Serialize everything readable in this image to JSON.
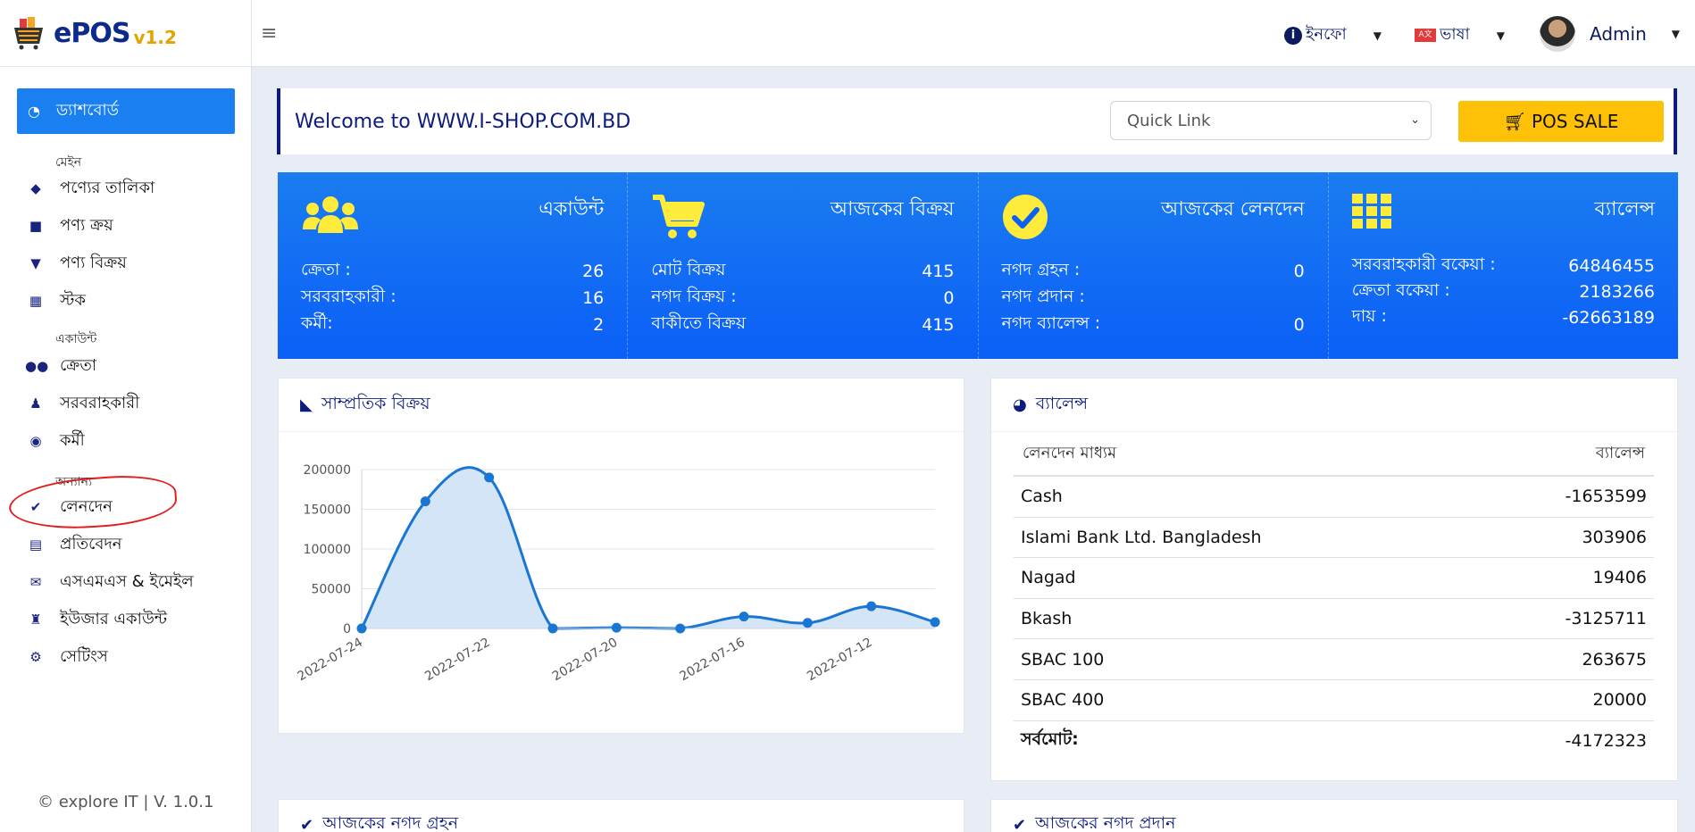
{
  "app": {
    "logo_text": "ePOS",
    "logo_version": "v1.2"
  },
  "sidebar": {
    "active": "ড্যাশবোর্ড",
    "sections": [
      {
        "label": "মেইন",
        "items": [
          "পণ্যের তালিকা",
          "পণ্য ক্রয়",
          "পণ্য বিক্রয়",
          "স্টক"
        ]
      },
      {
        "label": "একাউন্ট",
        "items": [
          "ক্রেতা",
          "সরবরাহকারী",
          "কর্মী"
        ]
      },
      {
        "label": "অন্যান্য",
        "items": [
          "লেনদেন",
          "প্রতিবেদন",
          "এসএমএস & ইমেইল",
          "ইউজার একাউন্ট",
          "সেটিংস"
        ]
      }
    ],
    "footer": "© explore IT | V. 1.0.1"
  },
  "topbar": {
    "info_label": "ইনফো",
    "lang_label": "ভাষা",
    "user_label": "Admin"
  },
  "welcome": {
    "text": "Welcome to WWW.I-SHOP.COM.BD",
    "quick_link_placeholder": "Quick Link",
    "pos_button": "POS SALE"
  },
  "stats": [
    {
      "title": "একাউন্ট",
      "icon": "users-icon",
      "rows": [
        [
          "ক্রেতা :",
          "26"
        ],
        [
          "সরবরাহকারী :",
          "16"
        ],
        [
          "কর্মী:",
          "2"
        ]
      ]
    },
    {
      "title": "আজকের বিক্রয়",
      "icon": "cart-icon",
      "rows": [
        [
          "মোট বিক্রয়",
          "415"
        ],
        [
          "নগদ বিক্রয় :",
          "0"
        ],
        [
          "বাকীতে বিক্রয়",
          "415"
        ]
      ]
    },
    {
      "title": "আজকের লেনদেন",
      "icon": "check-circle-icon",
      "rows": [
        [
          "নগদ গ্রহন :",
          "0"
        ],
        [
          "নগদ প্রদান :",
          ""
        ],
        [
          "নগদ ব্যালেন্স :",
          "0"
        ]
      ]
    },
    {
      "title": "ব্যালেন্স",
      "icon": "grid-icon",
      "rows": [
        [
          "সরবরাহকারী বকেয়া :",
          "64846455"
        ],
        [
          "ক্রেতা বকেয়া :",
          "2183266"
        ],
        [
          "দায় :",
          "-62663189"
        ]
      ]
    }
  ],
  "sales_card": {
    "title": "সাম্প্রতিক বিক্রয়"
  },
  "chart_data": {
    "type": "area",
    "x": [
      "2022-07-24",
      "2022-07-23",
      "2022-07-22",
      "2022-07-21",
      "2022-07-20",
      "2022-07-19",
      "2022-07-16",
      "2022-07-14",
      "2022-07-12",
      "2022-07-11"
    ],
    "values": [
      0,
      160000,
      190000,
      0,
      1000,
      0,
      15000,
      7000,
      28000,
      8000
    ],
    "tick_labels": [
      "2022-07-24",
      "2022-07-22",
      "2022-07-20",
      "2022-07-16",
      "2022-07-12"
    ],
    "y_ticks": [
      0,
      50000,
      100000,
      150000,
      200000
    ],
    "ylim": [
      0,
      200000
    ],
    "line_color": "#1976d2",
    "fill_color": "#cfe2f6",
    "grid": true
  },
  "balance_card": {
    "title": "ব্যালেন্স",
    "col_method": "লেনদেন মাধ্যম",
    "col_balance": "ব্যালেন্স",
    "rows": [
      [
        "Cash",
        "-1653599"
      ],
      [
        "Islami Bank Ltd. Bangladesh",
        "303906"
      ],
      [
        "Nagad",
        "19406"
      ],
      [
        "Bkash",
        "-3125711"
      ],
      [
        "SBAC 100",
        "263675"
      ],
      [
        "SBAC 400",
        "20000"
      ]
    ],
    "total_label": "সর্বমোট:",
    "total_value": "-4172323"
  },
  "bottom_cards": {
    "left_title": "আজকের নগদ গ্রহন",
    "right_title": "আজকের নগদ প্রদান"
  }
}
